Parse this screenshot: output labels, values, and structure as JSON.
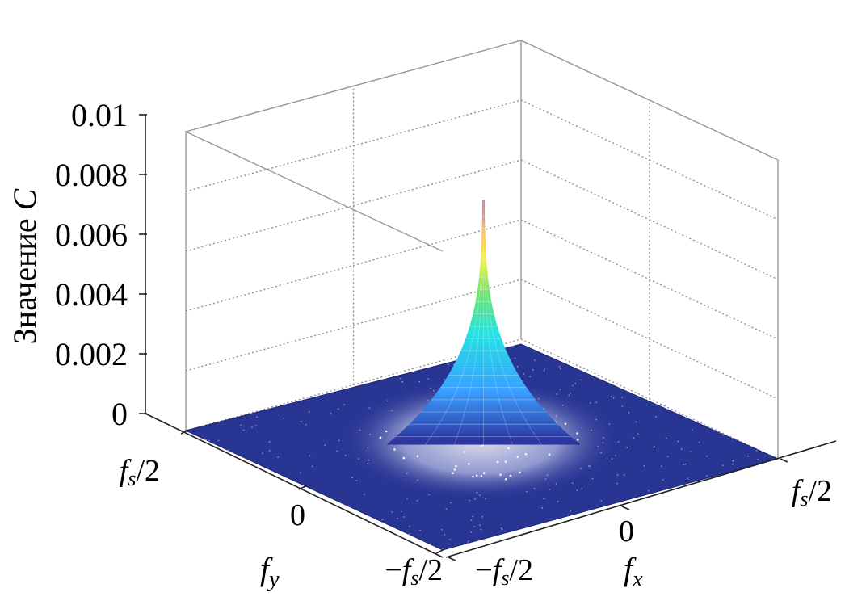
{
  "chart_data": {
    "type": "surface3d",
    "title": "",
    "zlabel": "Значение C",
    "zlabel_text": "Значение ",
    "zlabel_symbol": "C",
    "xlabel_main": "f",
    "xlabel_sub": "x",
    "ylabel_main": "f",
    "ylabel_sub": "y",
    "zlim": [
      0,
      0.01
    ],
    "z_ticks": [
      "0",
      "0.002",
      "0.004",
      "0.006",
      "0.008",
      "0.01"
    ],
    "x_ticks": [
      {
        "pre": "−f",
        "sub": "s",
        "post": "/2"
      },
      {
        "pre": "0",
        "sub": "",
        "post": ""
      },
      {
        "pre": "f",
        "sub": "s",
        "post": "/2"
      }
    ],
    "y_ticks": [
      {
        "pre": "−f",
        "sub": "s",
        "post": "/2"
      },
      {
        "pre": "0",
        "sub": "",
        "post": ""
      },
      {
        "pre": "f",
        "sub": "s",
        "post": "/2"
      }
    ],
    "xlim_label": "[−f_s/2, f_s/2]",
    "ylim_label": "[−f_s/2, f_s/2]",
    "peak": {
      "fx": 0,
      "fy": 0,
      "value": 0.0082
    },
    "floor_value": 0,
    "grid": true,
    "colormap": "jet",
    "floor_color": "#283593",
    "mesh_color": "#ffffff"
  }
}
